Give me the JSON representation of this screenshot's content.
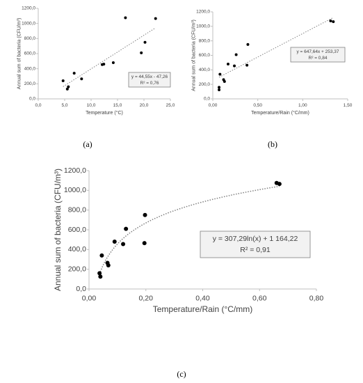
{
  "chart_data": [
    {
      "type": "scatter",
      "panel": "(a)",
      "xlabel": "Temperature (°C)",
      "ylabel": "Annual sum of bacteria (CFU/m³)",
      "x": [
        4.7,
        5.5,
        5.7,
        6.8,
        8.2,
        12.1,
        12.4,
        14.2,
        16.5,
        19.5,
        20.2,
        22.2
      ],
      "values": [
        240,
        130,
        160,
        340,
        265,
        455,
        460,
        480,
        1075,
        610,
        750,
        1065
      ],
      "color": "#000000",
      "xlim": [
        0,
        25
      ],
      "ylim": [
        0,
        1200
      ],
      "xticks": [
        {
          "value": 0,
          "label": "0,0"
        },
        {
          "value": 5,
          "label": "5,0"
        },
        {
          "value": 10,
          "label": "10,0"
        },
        {
          "value": 15,
          "label": "15,0"
        },
        {
          "value": 20,
          "label": "20,0"
        },
        {
          "value": 25,
          "label": "25,0"
        }
      ],
      "yticks": [
        {
          "value": 0,
          "label": "0,0"
        },
        {
          "value": 200,
          "label": "200,0"
        },
        {
          "value": 400,
          "label": "400,0"
        },
        {
          "value": 600,
          "label": "600,0"
        },
        {
          "value": 800,
          "label": "800,0"
        },
        {
          "value": 1000,
          "label": "1000,0"
        },
        {
          "value": 1200,
          "label": "1200,0"
        }
      ],
      "trendline": {
        "type": "linear",
        "coef": [
          44.55,
          -47.26
        ]
      },
      "equation": "y = 44,55x - 47,26",
      "r2": "R² = 0,76"
    },
    {
      "type": "scatter",
      "panel": "(b)",
      "xlabel": "Temperature/Rain (°C/mm)",
      "ylabel": "Annual sum of bacteria (CFU/m³)",
      "x": [
        0.07,
        0.07,
        0.08,
        0.12,
        0.13,
        0.17,
        0.24,
        0.26,
        0.38,
        0.39,
        1.31,
        1.34
      ],
      "values": [
        160,
        125,
        340,
        265,
        240,
        480,
        455,
        610,
        465,
        750,
        1075,
        1065
      ],
      "color": "#000000",
      "xlim": [
        0,
        1.5
      ],
      "ylim": [
        0,
        1200
      ],
      "xticks": [
        {
          "value": 0,
          "label": "0,00"
        },
        {
          "value": 0.5,
          "label": "0,50"
        },
        {
          "value": 1,
          "label": "1,00"
        },
        {
          "value": 1.5,
          "label": "1,50"
        }
      ],
      "yticks": [
        {
          "value": 0,
          "label": "0,0"
        },
        {
          "value": 200,
          "label": "200,0"
        },
        {
          "value": 400,
          "label": "400,0"
        },
        {
          "value": 600,
          "label": "600,0"
        },
        {
          "value": 800,
          "label": "800,0"
        },
        {
          "value": 1000,
          "label": "1000,0"
        },
        {
          "value": 1200,
          "label": "1200,0"
        }
      ],
      "trendline": {
        "type": "linear",
        "coef": [
          647.64,
          253.37
        ]
      },
      "equation": "y = 647,64x + 253,37",
      "r2": "R² = 0,84"
    },
    {
      "type": "scatter",
      "panel": "(c)",
      "xlabel": "Temperature/Rain (°C/mm)",
      "ylabel": "Annual sum of bacteria (CFU/m³)",
      "x": [
        0.037,
        0.04,
        0.045,
        0.065,
        0.068,
        0.09,
        0.12,
        0.13,
        0.195,
        0.197,
        0.66,
        0.67
      ],
      "values": [
        160,
        125,
        340,
        265,
        240,
        480,
        455,
        610,
        465,
        750,
        1075,
        1065
      ],
      "color": "#000000",
      "xlim": [
        0,
        0.8
      ],
      "ylim": [
        0,
        1200
      ],
      "xticks": [
        {
          "value": 0,
          "label": "0,00"
        },
        {
          "value": 0.2,
          "label": "0,20"
        },
        {
          "value": 0.4,
          "label": "0,40"
        },
        {
          "value": 0.6,
          "label": "0,60"
        },
        {
          "value": 0.8,
          "label": "0,80"
        }
      ],
      "yticks": [
        {
          "value": 0,
          "label": "0,0"
        },
        {
          "value": 200,
          "label": "200,0"
        },
        {
          "value": 400,
          "label": "400,0"
        },
        {
          "value": 600,
          "label": "600,0"
        },
        {
          "value": 800,
          "label": "800,0"
        },
        {
          "value": 1000,
          "label": "1000,0"
        },
        {
          "value": 1200,
          "label": "1200,0"
        }
      ],
      "trendline": {
        "type": "logarithmic",
        "coef": [
          307.29,
          1164.22
        ]
      },
      "equation": "y = 307,29ln(x) + 1 164,22",
      "r2": "R² = 0,91"
    }
  ]
}
